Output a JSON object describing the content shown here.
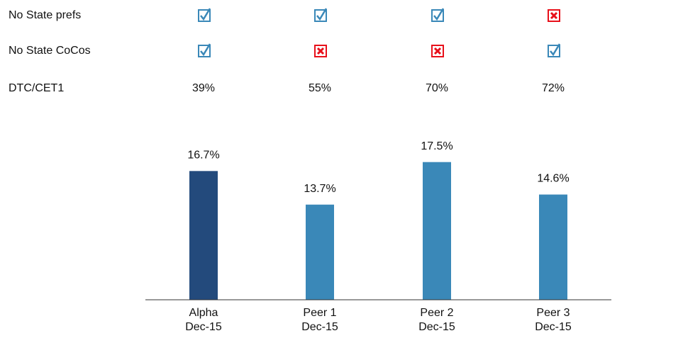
{
  "table": {
    "rows": [
      {
        "label": "No State prefs",
        "checks": [
          true,
          true,
          true,
          false
        ]
      },
      {
        "label": "No State CoCos",
        "checks": [
          true,
          false,
          false,
          true
        ]
      },
      {
        "label": "DTC/CET1",
        "cells": [
          "39%",
          "55%",
          "70%",
          "72%"
        ]
      }
    ]
  },
  "chart_data": {
    "type": "bar",
    "categories": [
      [
        "Alpha",
        "Dec-15"
      ],
      [
        "Peer 1",
        "Dec-15"
      ],
      [
        "Peer 2",
        "Dec-15"
      ],
      [
        "Peer 3",
        "Dec-15"
      ]
    ],
    "values": [
      16.7,
      13.7,
      17.5,
      14.6
    ],
    "value_labels": [
      "16.7%",
      "13.7%",
      "17.5%",
      "14.6%"
    ],
    "colors": [
      "#234a7c",
      "#3a88b8",
      "#3a88b8",
      "#3a88b8"
    ],
    "ylim": [
      5.2,
      19
    ]
  }
}
